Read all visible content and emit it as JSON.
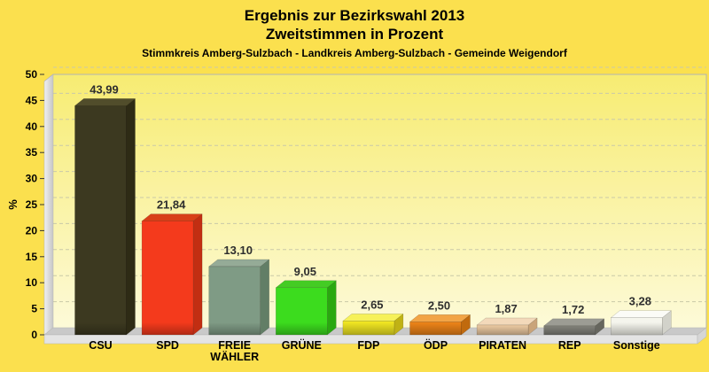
{
  "page": {
    "background": "#fbe04e"
  },
  "header": {
    "title": "Ergebnis zur Bezirkswahl 2013",
    "subtitle": "Zweitstimmen in Prozent",
    "region_line": "Stimmkreis Amberg-Sulzbach - Landkreis Amberg-Sulzbach - Gemeinde Weigendorf"
  },
  "chart_data": {
    "type": "bar",
    "style": "3d-column",
    "title": "Ergebnis zur Bezirkswahl 2013 - Zweitstimmen in Prozent",
    "categories": [
      "CSU",
      "SPD",
      "FREIE WÄHLER",
      "GRÜNE",
      "FDP",
      "ÖDP",
      "PIRATEN",
      "REP",
      "Sonstige"
    ],
    "values": [
      43.99,
      21.84,
      13.1,
      9.05,
      2.65,
      2.5,
      1.87,
      1.72,
      3.28
    ],
    "value_labels": [
      "43,99",
      "21,84",
      "13,10",
      "9,05",
      "2,65",
      "2,50",
      "1,87",
      "1,72",
      "3,28"
    ],
    "xlabel": "",
    "ylabel": "%",
    "ylim": [
      0,
      50
    ],
    "ytick_step": 5,
    "grid": "horizontal-dashed",
    "legend_position": "none",
    "bar_colors": [
      {
        "name": "CSU",
        "front": "#3c3920",
        "top": "#514d2b",
        "side": "#2e2b15"
      },
      {
        "name": "SPD",
        "front": "#f43a1c",
        "top": "#d84018",
        "side": "#c22e12"
      },
      {
        "name": "FREIE WÄHLER",
        "front": "#7f9b85",
        "top": "#95ab97",
        "side": "#627e66"
      },
      {
        "name": "GRÜNE",
        "front": "#3cdc1e",
        "top": "#44cc24",
        "side": "#2aa810"
      },
      {
        "name": "FDP",
        "front": "#f0e622",
        "top": "#f6f159",
        "side": "#c0b215"
      },
      {
        "name": "ÖDP",
        "front": "#ee8418",
        "top": "#f2a446",
        "side": "#c06a0e"
      },
      {
        "name": "PIRATEN",
        "front": "#edcba2",
        "top": "#f3d9ba",
        "side": "#c9a47a"
      },
      {
        "name": "REP",
        "front": "#82827a",
        "top": "#9c9c94",
        "side": "#66665e"
      },
      {
        "name": "Sonstige",
        "front": "#f5f5ed",
        "top": "#fbfbf7",
        "side": "#d2d2ca"
      }
    ],
    "plot": {
      "bg_top": "#f7ec72",
      "bg_bottom": "#fdfad8",
      "wall_light": "#f0f0f0",
      "wall_dark": "#c6c6c6",
      "floor_top": "#c9c9c9",
      "floor_front": "#e4e4e4",
      "floor_end": "#d6d6d6",
      "grid_color": "#c9c9a8",
      "border_color": "#b3b3b3",
      "tick_color": "#333333",
      "value_label_color": "#2e2e2e",
      "category_label_color": "#000000"
    }
  }
}
